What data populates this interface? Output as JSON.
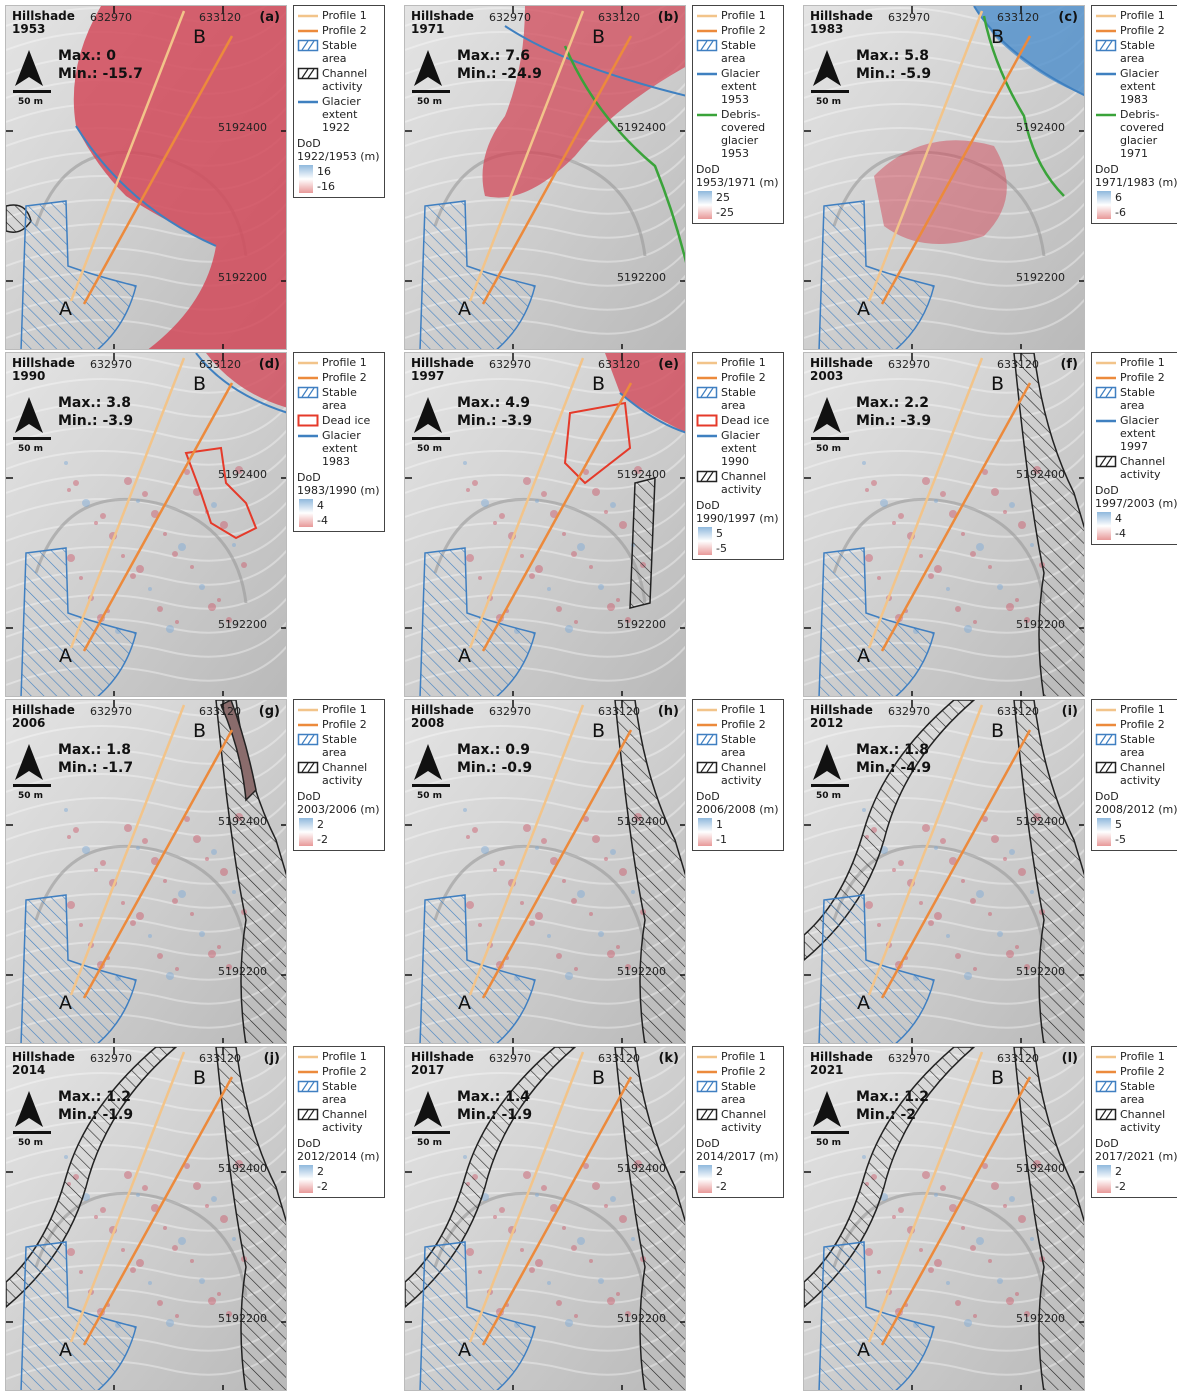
{
  "coords": {
    "x1": "632970",
    "x2": "633120",
    "y1": "5192400",
    "y2": "5192200"
  },
  "point_labels": {
    "a": "A",
    "b": "B"
  },
  "scale_label": "50 m",
  "legend_common": {
    "profile1": "Profile 1",
    "profile2": "Profile 2",
    "stable": "Stable area"
  },
  "colors": {
    "profile1": "#f2c48a",
    "profile2": "#ec8a3c",
    "stable": "#3f7fc1",
    "glacier": "#3f80c0",
    "debris": "#3aa33a",
    "deadice": "#e53a2a",
    "channel": "#222222",
    "dod_pos": "#8fb8dd",
    "dod_neg": "#e89999"
  },
  "panels": [
    {
      "letter": "(a)",
      "year": "1953",
      "hillshade": "Hillshade",
      "max": "Max.: 0",
      "min": "Min.: -15.7",
      "legend_extra": [
        {
          "type": "channel",
          "label": "Channel activity"
        },
        {
          "type": "glacier",
          "label": "Glacier extent 1922"
        }
      ],
      "dod_title": "DoD 1922/1953 (m)",
      "dod_pos": "16",
      "dod_neg": "-16"
    },
    {
      "letter": "(b)",
      "year": "1971",
      "hillshade": "Hillshade",
      "max": "Max.: 7.6",
      "min": "Min.: -24.9",
      "legend_extra": [
        {
          "type": "glacier",
          "label": "Glacier extent 1953"
        },
        {
          "type": "debris",
          "label": "Debris-covered glacier 1953"
        }
      ],
      "dod_title": "DoD 1953/1971 (m)",
      "dod_pos": "25",
      "dod_neg": "-25"
    },
    {
      "letter": "(c)",
      "year": "1983",
      "hillshade": "Hillshade",
      "max": "Max.: 5.8",
      "min": "Min.: -5.9",
      "legend_extra": [
        {
          "type": "glacier",
          "label": "Glacier extent 1983"
        },
        {
          "type": "debris",
          "label": "Debris-covered glacier 1971"
        }
      ],
      "dod_title": "DoD 1971/1983 (m)",
      "dod_pos": "6",
      "dod_neg": "-6"
    },
    {
      "letter": "(d)",
      "year": "1990",
      "hillshade": "Hillshade",
      "max": "Max.: 3.8",
      "min": "Min.: -3.9",
      "legend_extra": [
        {
          "type": "deadice",
          "label": "Dead ice"
        },
        {
          "type": "glacier",
          "label": "Glacier extent 1983"
        }
      ],
      "dod_title": "DoD 1983/1990 (m)",
      "dod_pos": "4",
      "dod_neg": "-4"
    },
    {
      "letter": "(e)",
      "year": "1997",
      "hillshade": "Hillshade",
      "max": "Max.: 4.9",
      "min": "Min.: -3.9",
      "legend_extra": [
        {
          "type": "deadice",
          "label": "Dead ice"
        },
        {
          "type": "glacier",
          "label": "Glacier extent 1990"
        },
        {
          "type": "channel",
          "label": "Channel activity"
        }
      ],
      "dod_title": "DoD 1990/1997 (m)",
      "dod_pos": "5",
      "dod_neg": "-5"
    },
    {
      "letter": "(f)",
      "year": "2003",
      "hillshade": "Hillshade",
      "max": "Max.: 2.2",
      "min": "Min.: -3.9",
      "legend_extra": [
        {
          "type": "glacier",
          "label": "Glacier extent 1997"
        },
        {
          "type": "channel",
          "label": "Channel activity"
        }
      ],
      "dod_title": "DoD 1997/2003 (m)",
      "dod_pos": "4",
      "dod_neg": "-4"
    },
    {
      "letter": "(g)",
      "year": "2006",
      "hillshade": "Hillshade",
      "max": "Max.: 1.8",
      "min": "Min.: -1.7",
      "legend_extra": [
        {
          "type": "channel",
          "label": "Channel activity"
        }
      ],
      "dod_title": "DoD 2003/2006 (m)",
      "dod_pos": "2",
      "dod_neg": "-2"
    },
    {
      "letter": "(h)",
      "year": "2008",
      "hillshade": "Hillshade",
      "max": "Max.: 0.9",
      "min": "Min.: -0.9",
      "legend_extra": [
        {
          "type": "channel",
          "label": "Channel activity"
        }
      ],
      "dod_title": "DoD 2006/2008 (m)",
      "dod_pos": "1",
      "dod_neg": "-1"
    },
    {
      "letter": "(i)",
      "year": "2012",
      "hillshade": "Hillshade",
      "max": "Max.: 1.8",
      "min": "Min.: -4.9",
      "legend_extra": [
        {
          "type": "channel",
          "label": "Channel activity"
        }
      ],
      "dod_title": "DoD 2008/2012 (m)",
      "dod_pos": "5",
      "dod_neg": "-5"
    },
    {
      "letter": "(j)",
      "year": "2014",
      "hillshade": "Hillshade",
      "max": "Max.: 1.2",
      "min": "Min.: -1.9",
      "legend_extra": [
        {
          "type": "channel",
          "label": "Channel activity"
        }
      ],
      "dod_title": "DoD 2012/2014 (m)",
      "dod_pos": "2",
      "dod_neg": "-2"
    },
    {
      "letter": "(k)",
      "year": "2017",
      "hillshade": "Hillshade",
      "max": "Max.: 1.4",
      "min": "Min.: -1.9",
      "legend_extra": [
        {
          "type": "channel",
          "label": "Channel activity"
        }
      ],
      "dod_title": "DoD 2014/2017 (m)",
      "dod_pos": "2",
      "dod_neg": "-2"
    },
    {
      "letter": "(l)",
      "year": "2021",
      "hillshade": "Hillshade",
      "max": "Max.: 1.2",
      "min": "Min.: -2",
      "legend_extra": [
        {
          "type": "channel",
          "label": "Channel activity"
        }
      ],
      "dod_title": "DoD 2017/2021 (m)",
      "dod_pos": "2",
      "dod_neg": "-2"
    }
  ]
}
